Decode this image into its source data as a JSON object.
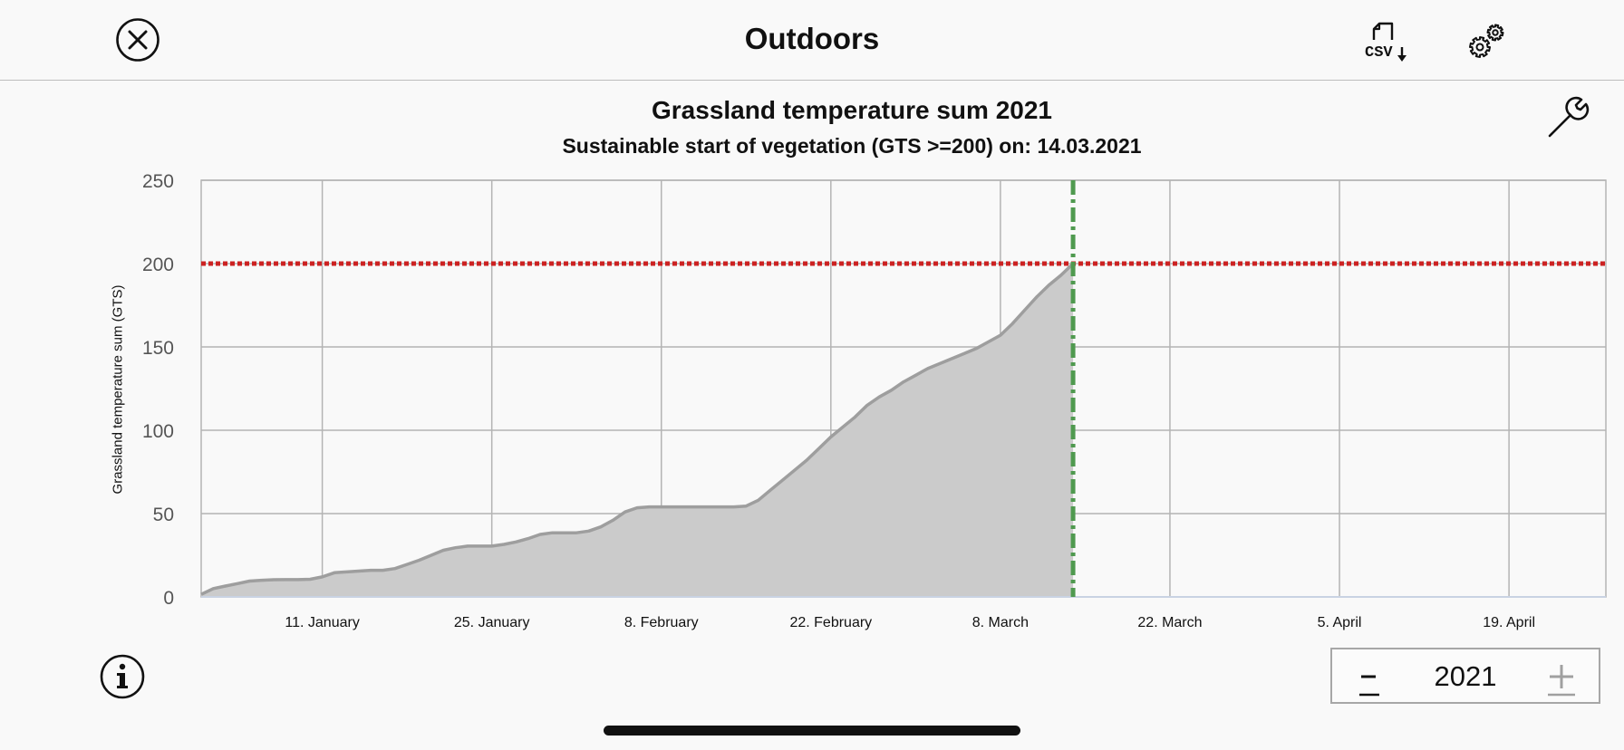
{
  "header": {
    "title": "Outdoors",
    "csv_icon_text": "CSV"
  },
  "year_stepper": {
    "minus_label": "–",
    "value": "2021",
    "plus_label": "+"
  },
  "colors": {
    "area_fill": "#cbcbcb",
    "area_line": "#9e9e9e",
    "threshold_line": "#cc2222",
    "start_marker": "#4f9a4f",
    "grid": "#b4b4b4"
  },
  "chart_data": {
    "type": "area",
    "title": "Grassland temperature sum 2021",
    "subtitle": "Sustainable start of vegetation (GTS >=200) on: 14.03.2021",
    "ylabel": "Grassland temperature sum (GTS)",
    "xlabel": "",
    "ylim": [
      0,
      250
    ],
    "xlim": [
      "2021-01-01",
      "2021-04-27"
    ],
    "y_ticks": [
      0,
      50,
      100,
      150,
      200,
      250
    ],
    "x_ticks": [
      {
        "date": "2021-01-11",
        "label": "11. January"
      },
      {
        "date": "2021-01-25",
        "label": "25. January"
      },
      {
        "date": "2021-02-08",
        "label": "8. February"
      },
      {
        "date": "2021-02-22",
        "label": "22. February"
      },
      {
        "date": "2021-03-08",
        "label": "8. March"
      },
      {
        "date": "2021-03-22",
        "label": "22. March"
      },
      {
        "date": "2021-04-05",
        "label": "5. April"
      },
      {
        "date": "2021-04-19",
        "label": "19. April"
      }
    ],
    "grid": true,
    "threshold": {
      "value": 200,
      "style": "dotted"
    },
    "vertical_marker": {
      "date": "2021-03-14",
      "style": "dash-dot"
    },
    "series": [
      {
        "x": [
          "2021-01-01",
          "2021-01-02",
          "2021-01-03",
          "2021-01-04",
          "2021-01-05",
          "2021-01-06",
          "2021-01-07",
          "2021-01-08",
          "2021-01-09",
          "2021-01-10",
          "2021-01-11",
          "2021-01-12",
          "2021-01-13",
          "2021-01-14",
          "2021-01-15",
          "2021-01-16",
          "2021-01-17",
          "2021-01-18",
          "2021-01-19",
          "2021-01-20",
          "2021-01-21",
          "2021-01-22",
          "2021-01-23",
          "2021-01-24",
          "2021-01-25",
          "2021-01-26",
          "2021-01-27",
          "2021-01-28",
          "2021-01-29",
          "2021-01-30",
          "2021-01-31",
          "2021-02-01",
          "2021-02-02",
          "2021-02-03",
          "2021-02-04",
          "2021-02-05",
          "2021-02-06",
          "2021-02-07",
          "2021-02-08",
          "2021-02-09",
          "2021-02-10",
          "2021-02-11",
          "2021-02-12",
          "2021-02-13",
          "2021-02-14",
          "2021-02-15",
          "2021-02-16",
          "2021-02-17",
          "2021-02-18",
          "2021-02-19",
          "2021-02-20",
          "2021-02-21",
          "2021-02-22",
          "2021-02-23",
          "2021-02-24",
          "2021-02-25",
          "2021-02-26",
          "2021-02-27",
          "2021-02-28",
          "2021-03-01",
          "2021-03-02",
          "2021-03-03",
          "2021-03-04",
          "2021-03-05",
          "2021-03-06",
          "2021-03-07",
          "2021-03-08",
          "2021-03-09",
          "2021-03-10",
          "2021-03-11",
          "2021-03-12",
          "2021-03-13",
          "2021-03-14"
        ],
        "values": [
          1.5,
          5,
          6.5,
          8,
          9.5,
          10,
          10.3,
          10.4,
          10.4,
          10.6,
          12,
          14.5,
          15,
          15.5,
          16,
          16,
          17,
          19.5,
          22,
          25,
          28,
          29.5,
          30.5,
          30.5,
          30.5,
          31.5,
          33,
          35,
          37.5,
          38.5,
          38.5,
          38.5,
          39.5,
          42,
          46,
          51,
          53.5,
          54,
          54,
          54,
          54,
          54,
          54,
          54,
          54,
          54.5,
          58,
          64,
          70,
          76,
          82,
          89,
          96,
          102,
          108,
          115,
          120,
          124,
          129,
          133,
          137,
          140,
          143,
          146,
          149,
          153,
          157,
          164,
          172,
          180,
          187,
          193,
          200
        ]
      }
    ]
  }
}
